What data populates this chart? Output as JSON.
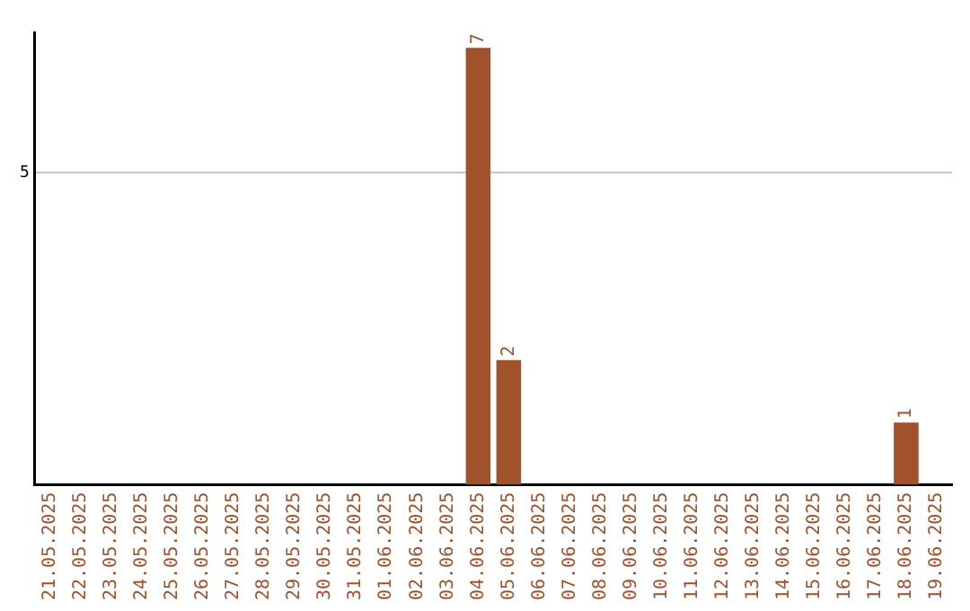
{
  "chart_data": {
    "type": "bar",
    "categories": [
      "21.05.2025",
      "22.05.2025",
      "23.05.2025",
      "24.05.2025",
      "25.05.2025",
      "26.05.2025",
      "27.05.2025",
      "28.05.2025",
      "29.05.2025",
      "30.05.2025",
      "31.05.2025",
      "01.06.2025",
      "02.06.2025",
      "03.06.2025",
      "04.06.2025",
      "05.06.2025",
      "06.06.2025",
      "07.06.2025",
      "08.06.2025",
      "09.06.2025",
      "10.06.2025",
      "11.06.2025",
      "12.06.2025",
      "13.06.2025",
      "14.06.2025",
      "15.06.2025",
      "16.06.2025",
      "17.06.2025",
      "18.06.2025",
      "19.06.2025"
    ],
    "values": [
      null,
      null,
      null,
      null,
      null,
      null,
      null,
      null,
      null,
      null,
      null,
      null,
      null,
      null,
      7,
      2,
      null,
      null,
      null,
      null,
      null,
      null,
      null,
      null,
      null,
      null,
      null,
      null,
      1,
      null
    ],
    "color": "#a0522d",
    "ylim": [
      0,
      7.25
    ],
    "yticks": [
      5
    ],
    "grid": "y",
    "data_labels": true,
    "legend": false
  }
}
